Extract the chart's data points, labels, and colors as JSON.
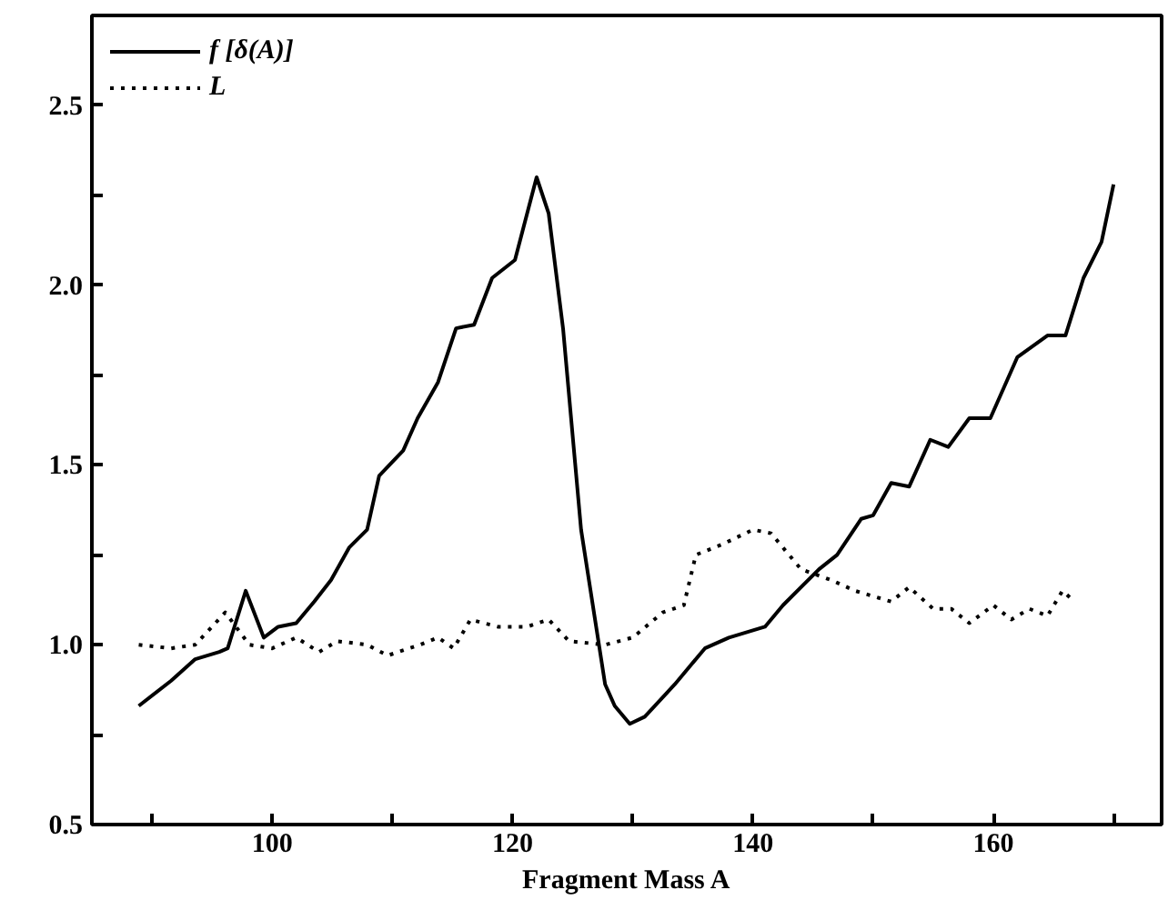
{
  "chart_data": {
    "type": "line",
    "xlabel": "Fragment Mass A",
    "xlim": [
      85,
      174
    ],
    "ylim": [
      0.5,
      2.75
    ],
    "xticks": [
      {
        "value": 90,
        "label": null
      },
      100,
      {
        "value": 110,
        "label": null
      },
      120,
      {
        "value": 130,
        "label": null
      },
      140,
      {
        "value": 150,
        "label": null
      },
      160,
      {
        "value": 170,
        "label": null
      }
    ],
    "yticks": [
      0.5,
      {
        "value": 0.75,
        "label": null
      },
      {
        "value": 1,
        "label": "1.0"
      },
      {
        "value": 1.25,
        "label": null
      },
      1.5,
      {
        "value": 1.75,
        "label": null
      },
      {
        "value": 2,
        "label": "2.0"
      },
      {
        "value": 2.25,
        "label": null
      },
      2.5
    ],
    "grid": false,
    "legend": "top left",
    "marker": "none",
    "series": [
      {
        "name": "f [δ(A)]",
        "color": "#000000",
        "line_style": "solid",
        "x": [
          88.9,
          91.6,
          93.6,
          95.6,
          96.3,
          97.8,
          99.3,
          100.5,
          102,
          103.5,
          104.9,
          106.4,
          107.9,
          108.9,
          110.9,
          112.1,
          113.8,
          115.3,
          116.8,
          118.3,
          120.2,
          122,
          123,
          124.2,
          125.7,
          127.7,
          128.5,
          129.75,
          131,
          133.5,
          136,
          138,
          141,
          142.5,
          144,
          145.5,
          147,
          149,
          150,
          151.5,
          153,
          154.75,
          156.25,
          158,
          159.75,
          162,
          164.5,
          166,
          167.5,
          169,
          170
        ],
        "values": [
          0.83,
          0.9,
          0.96,
          0.98,
          0.99,
          1.15,
          1.02,
          1.05,
          1.06,
          1.12,
          1.18,
          1.27,
          1.32,
          1.47,
          1.54,
          1.63,
          1.73,
          1.88,
          1.89,
          2.02,
          2.07,
          2.3,
          2.2,
          1.88,
          1.32,
          0.89,
          0.83,
          0.78,
          0.8,
          0.89,
          0.99,
          1.02,
          1.05,
          1.11,
          1.16,
          1.21,
          1.25,
          1.35,
          1.36,
          1.45,
          1.44,
          1.57,
          1.55,
          1.63,
          1.63,
          1.8,
          1.86,
          1.86,
          2.02,
          2.12,
          2.28
        ]
      },
      {
        "name": "L",
        "color": "#000000",
        "line_style": "dotted",
        "x": [
          88.9,
          91.6,
          93.6,
          96.1,
          98.1,
          100,
          102,
          103.9,
          105.4,
          107.9,
          109.6,
          112.3,
          113.8,
          115.1,
          116.5,
          118.8,
          121.2,
          123,
          124.7,
          127.7,
          130,
          132.5,
          134.25,
          135.25,
          137.5,
          140,
          141.5,
          144,
          146.5,
          148.5,
          151.5,
          153,
          155,
          156.5,
          158,
          160,
          161.5,
          163,
          164.5,
          165.75,
          166.75
        ],
        "values": [
          1.0,
          0.99,
          1.0,
          1.09,
          1.0,
          0.99,
          1.02,
          0.98,
          1.01,
          1.0,
          0.97,
          1.0,
          1.02,
          0.99,
          1.07,
          1.05,
          1.05,
          1.07,
          1.01,
          1.0,
          1.02,
          1.09,
          1.11,
          1.25,
          1.28,
          1.32,
          1.31,
          1.21,
          1.18,
          1.15,
          1.12,
          1.16,
          1.1,
          1.1,
          1.06,
          1.11,
          1.07,
          1.1,
          1.08,
          1.15,
          1.12
        ]
      }
    ]
  }
}
